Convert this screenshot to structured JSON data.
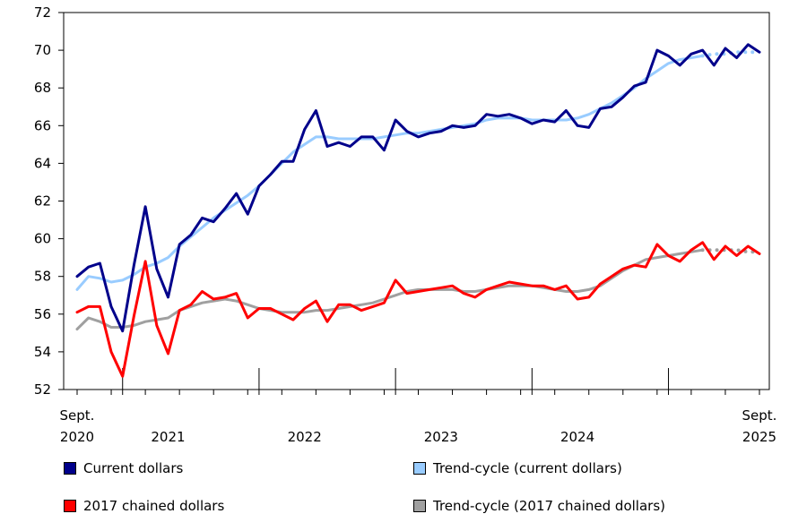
{
  "chart_data": {
    "type": "line",
    "title": "",
    "xlabel": "",
    "ylabel": "",
    "ylim": [
      52,
      72
    ],
    "y_ticks": [
      52,
      54,
      56,
      58,
      60,
      62,
      64,
      66,
      68,
      70,
      72
    ],
    "x_ticks": [
      {
        "month_index": 0,
        "line1": "Sept.",
        "line2": "2020"
      },
      {
        "month_index": 8,
        "line1": "",
        "line2": "2021"
      },
      {
        "month_index": 20,
        "line1": "",
        "line2": "2022"
      },
      {
        "month_index": 32,
        "line1": "",
        "line2": "2023"
      },
      {
        "month_index": 44,
        "line1": "",
        "line2": "2024"
      },
      {
        "month_index": 60,
        "line1": "Sept.",
        "line2": "2025"
      }
    ],
    "year_boundaries": [
      4,
      16,
      28,
      40,
      52
    ],
    "n_months": 61,
    "series": [
      {
        "name": "Current dollars",
        "color": "#00008b",
        "style": "solid",
        "values": [
          58.0,
          58.5,
          58.7,
          56.4,
          55.1,
          58.6,
          61.7,
          58.4,
          56.9,
          59.7,
          60.2,
          61.1,
          60.9,
          61.6,
          62.4,
          61.3,
          62.8,
          63.4,
          64.1,
          64.1,
          65.8,
          66.8,
          64.9,
          65.1,
          64.9,
          65.4,
          65.4,
          64.7,
          66.3,
          65.7,
          65.4,
          65.6,
          65.7,
          66.0,
          65.9,
          66.0,
          66.6,
          66.5,
          66.6,
          66.4,
          66.1,
          66.3,
          66.2,
          66.8,
          66.0,
          65.9,
          66.9,
          67.0,
          67.5,
          68.1,
          68.3,
          70.0,
          69.7,
          69.2,
          69.8,
          70.0,
          69.2,
          70.1,
          69.6,
          70.3,
          69.9
        ]
      },
      {
        "name": "Trend-cycle (current dollars)",
        "color": "#99ccff",
        "style": "solid",
        "dotted_tail_from": 55,
        "values": [
          57.3,
          58.0,
          57.9,
          57.7,
          57.8,
          58.1,
          58.5,
          58.7,
          59.0,
          59.6,
          60.1,
          60.6,
          61.1,
          61.5,
          61.9,
          62.3,
          62.8,
          63.4,
          64.0,
          64.6,
          65.0,
          65.4,
          65.4,
          65.3,
          65.3,
          65.3,
          65.3,
          65.4,
          65.5,
          65.6,
          65.6,
          65.7,
          65.8,
          65.9,
          66.0,
          66.1,
          66.3,
          66.4,
          66.4,
          66.4,
          66.3,
          66.3,
          66.3,
          66.3,
          66.4,
          66.6,
          66.9,
          67.2,
          67.6,
          68.0,
          68.5,
          68.9,
          69.3,
          69.5,
          69.6,
          69.7,
          69.8,
          69.8,
          69.9,
          69.9,
          69.9
        ]
      },
      {
        "name": "2017 chained dollars",
        "color": "#ff0000",
        "style": "solid",
        "values": [
          56.1,
          56.4,
          56.4,
          54.0,
          52.7,
          55.9,
          58.8,
          55.4,
          53.9,
          56.2,
          56.5,
          57.2,
          56.8,
          56.9,
          57.1,
          55.8,
          56.3,
          56.3,
          56.0,
          55.7,
          56.3,
          56.7,
          55.6,
          56.5,
          56.5,
          56.2,
          56.4,
          56.6,
          57.8,
          57.1,
          57.2,
          57.3,
          57.4,
          57.5,
          57.1,
          56.9,
          57.3,
          57.5,
          57.7,
          57.6,
          57.5,
          57.5,
          57.3,
          57.5,
          56.8,
          56.9,
          57.6,
          58.0,
          58.4,
          58.6,
          58.5,
          59.7,
          59.1,
          58.8,
          59.4,
          59.8,
          58.9,
          59.6,
          59.1,
          59.6,
          59.2
        ]
      },
      {
        "name": "Trend-cycle (2017 chained dollars)",
        "color": "#a0a0a0",
        "style": "solid",
        "dotted_tail_from": 55,
        "values": [
          55.2,
          55.8,
          55.6,
          55.3,
          55.3,
          55.4,
          55.6,
          55.7,
          55.8,
          56.2,
          56.4,
          56.6,
          56.7,
          56.8,
          56.7,
          56.5,
          56.3,
          56.2,
          56.1,
          56.1,
          56.1,
          56.2,
          56.2,
          56.3,
          56.4,
          56.5,
          56.6,
          56.8,
          57.0,
          57.2,
          57.3,
          57.3,
          57.3,
          57.3,
          57.2,
          57.2,
          57.3,
          57.4,
          57.5,
          57.5,
          57.5,
          57.4,
          57.3,
          57.2,
          57.2,
          57.3,
          57.5,
          57.9,
          58.3,
          58.6,
          58.9,
          59.0,
          59.1,
          59.2,
          59.3,
          59.4,
          59.4,
          59.4,
          59.4,
          59.3,
          59.3
        ]
      }
    ]
  },
  "legend": {
    "current": "Current dollars",
    "trend_current": "Trend-cycle (current dollars)",
    "chained": "2017 chained dollars",
    "trend_chained": "Trend-cycle (2017 chained dollars)"
  },
  "colors": {
    "current": "#00008b",
    "trend_current": "#99ccff",
    "chained": "#ff0000",
    "trend_chained": "#a0a0a0"
  }
}
